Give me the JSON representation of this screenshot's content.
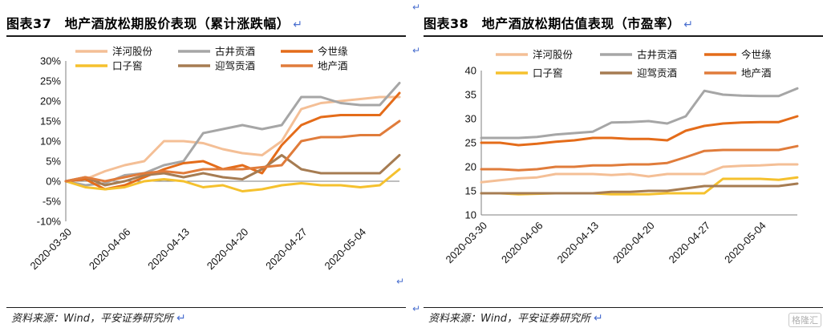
{
  "left": {
    "title": "图表37　地产酒放松期股价表现（累计涨跌幅）",
    "source": "资料来源：Wind，平安证券研究所",
    "chart_data": {
      "type": "line",
      "x": [
        "2020-03-30",
        "2020-04-01",
        "2020-04-03",
        "2020-04-06",
        "2020-04-08",
        "2020-04-10",
        "2020-04-13",
        "2020-04-15",
        "2020-04-17",
        "2020-04-20",
        "2020-04-22",
        "2020-04-24",
        "2020-04-27",
        "2020-04-29",
        "2020-05-01",
        "2020-05-04",
        "2020-05-06",
        "2020-05-08"
      ],
      "xticks": [
        "2020-03-30",
        "2020-04-06",
        "2020-04-13",
        "2020-04-20",
        "2020-04-27",
        "2020-05-04"
      ],
      "ylim": [
        -10,
        30
      ],
      "yticks": [
        "-10%",
        "-5%",
        "0%",
        "5%",
        "10%",
        "15%",
        "20%",
        "25%",
        "30%"
      ],
      "ytick_values": [
        -10,
        -5,
        0,
        5,
        10,
        15,
        20,
        25,
        30
      ],
      "series": [
        {
          "name": "洋河股份",
          "color": "#f4bf96",
          "values": [
            0,
            0.5,
            2.5,
            4,
            5,
            10,
            10,
            9.5,
            8,
            7,
            6.5,
            10,
            18,
            19.5,
            20,
            20.5,
            21,
            21
          ]
        },
        {
          "name": "古井贡酒",
          "color": "#a6a6a6",
          "values": [
            0,
            -1,
            -0.5,
            1.5,
            2,
            4,
            5,
            12,
            13,
            14,
            13,
            14,
            21,
            21,
            19.5,
            19,
            19,
            24.5
          ]
        },
        {
          "name": "今世缘",
          "color": "#e46c1a",
          "values": [
            0,
            0.5,
            -2,
            -1,
            1,
            3,
            4.5,
            5,
            3,
            4,
            2,
            9,
            14,
            16,
            16.5,
            16.5,
            16.5,
            22
          ]
        },
        {
          "name": "口子窖",
          "color": "#f5c12e",
          "values": [
            0,
            -1.5,
            -2,
            -1.5,
            0,
            0.5,
            0,
            -1.5,
            -1,
            -2.5,
            -2,
            -1,
            -0.5,
            -1,
            -1,
            -1.5,
            -1,
            3
          ]
        },
        {
          "name": "迎驾贡酒",
          "color": "#a67c52",
          "values": [
            0,
            1,
            -1,
            0,
            1.5,
            2,
            1,
            2,
            1,
            0.5,
            3,
            6.5,
            3,
            2,
            2,
            2,
            2,
            6.5
          ]
        },
        {
          "name": "地产酒",
          "color": "#e07c3b",
          "values": [
            0,
            1,
            0,
            1,
            2,
            2.5,
            2,
            3,
            3,
            3,
            3.5,
            4,
            10,
            11,
            11,
            11.5,
            11.5,
            15
          ]
        }
      ]
    }
  },
  "right": {
    "title": "图表38　地产酒放松期估值表现（市盈率）",
    "source": "资料来源：Wind，平安证券研究所",
    "chart_data": {
      "type": "line",
      "x": [
        "2020-03-30",
        "2020-04-01",
        "2020-04-03",
        "2020-04-06",
        "2020-04-08",
        "2020-04-10",
        "2020-04-13",
        "2020-04-15",
        "2020-04-17",
        "2020-04-20",
        "2020-04-22",
        "2020-04-24",
        "2020-04-27",
        "2020-04-29",
        "2020-05-01",
        "2020-05-04",
        "2020-05-06",
        "2020-05-08"
      ],
      "xticks": [
        "2020-03-30",
        "2020-04-06",
        "2020-04-13",
        "2020-04-20",
        "2020-04-27",
        "2020-05-04"
      ],
      "ylim": [
        10,
        40
      ],
      "yticks": [
        "10",
        "15",
        "20",
        "25",
        "30",
        "35",
        "40"
      ],
      "ytick_values": [
        10,
        15,
        20,
        25,
        30,
        35,
        40
      ],
      "series": [
        {
          "name": "洋河股份",
          "color": "#f4bf96",
          "values": [
            16.8,
            17.2,
            17.6,
            17.8,
            18.5,
            18.5,
            18.5,
            18.3,
            18.5,
            18,
            18.5,
            18.5,
            18.5,
            20,
            20.2,
            20.3,
            20.5,
            20.5
          ]
        },
        {
          "name": "古井贡酒",
          "color": "#a6a6a6",
          "values": [
            26,
            26,
            26,
            26.2,
            26.7,
            27,
            27.3,
            29.2,
            29.3,
            29.5,
            29,
            30.5,
            35.8,
            35,
            34.8,
            34.7,
            34.7,
            36.3
          ]
        },
        {
          "name": "今世缘",
          "color": "#e46c1a",
          "values": [
            25,
            25,
            24.5,
            24.8,
            25.2,
            25.5,
            26,
            26,
            25.8,
            25.8,
            25.5,
            27.5,
            28.5,
            29,
            29.2,
            29.3,
            29.3,
            30.5
          ]
        },
        {
          "name": "口子窖",
          "color": "#f5c12e",
          "values": [
            14.5,
            14.5,
            14.3,
            14.4,
            14.5,
            14.5,
            14.5,
            14.3,
            14.3,
            14.3,
            14.5,
            14.5,
            14.5,
            17.5,
            17.5,
            17.5,
            17.3,
            17.8
          ]
        },
        {
          "name": "迎驾贡酒",
          "color": "#a67c52",
          "values": [
            14.5,
            14.5,
            14.5,
            14.5,
            14.5,
            14.5,
            14.5,
            14.8,
            14.8,
            15,
            15,
            15.5,
            16,
            16,
            16,
            16,
            16,
            16.5
          ]
        },
        {
          "name": "地产酒",
          "color": "#e07c3b",
          "values": [
            19.5,
            19.5,
            19.3,
            19.5,
            20,
            20,
            20.3,
            20.3,
            20.5,
            20.5,
            20.8,
            22,
            23.3,
            23.5,
            23.5,
            23.5,
            23.5,
            24.3
          ]
        }
      ]
    }
  },
  "icons": {
    "return_mark": "↵",
    "corner_mark": "↵",
    "mid_mark": "↵"
  },
  "watermark": "格隆汇"
}
